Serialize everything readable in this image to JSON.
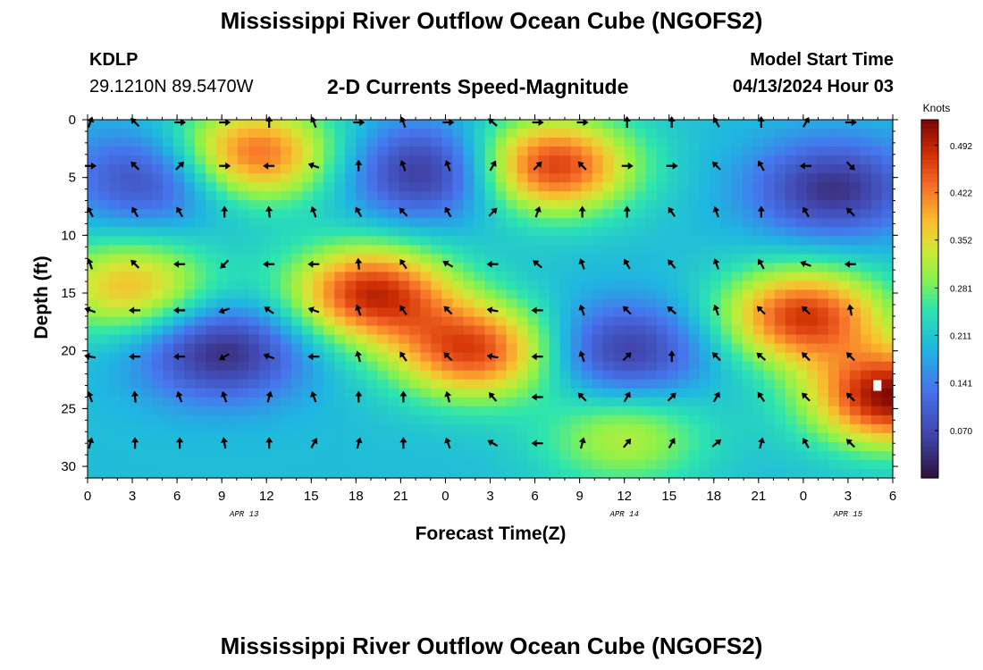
{
  "header": {
    "title": "Mississippi River Outflow Ocean Cube (NGOFS2)",
    "station": "KDLP",
    "coords": "29.1210N  89.5470W",
    "plot_title": "2-D Currents Speed-Magnitude",
    "start_label": "Model Start Time",
    "start_value": "04/13/2024 Hour 03"
  },
  "footer": {
    "title": "Mississippi River Outflow Ocean Cube (NGOFS2)"
  },
  "chart_data": {
    "type": "heatmap",
    "title": "2-D Currents Speed-Magnitude",
    "xlabel": "Forecast Time(Z)",
    "ylabel": "Depth (ft)",
    "x_hours_from_start": [
      0,
      54
    ],
    "x_tick_labels": [
      "0",
      "3",
      "6",
      "9",
      "12",
      "15",
      "18",
      "21",
      "0",
      "3",
      "6",
      "9",
      "12",
      "15",
      "18",
      "21",
      "0",
      "3",
      "6"
    ],
    "date_labels": [
      {
        "label": "APR 13",
        "at_tick": 3.5
      },
      {
        "label": "APR 14",
        "at_tick": 12
      },
      {
        "label": "APR 15",
        "at_tick": 17
      }
    ],
    "y_ticks": [
      0,
      5,
      10,
      15,
      20,
      25,
      30
    ],
    "ylim": [
      0,
      31
    ],
    "y_inverted": true,
    "colorbar": {
      "unit": "Knots",
      "ticks": [
        "0.492",
        "0.422",
        "0.352",
        "0.281",
        "0.211",
        "0.141",
        "0.070"
      ],
      "range": [
        0.0,
        0.53
      ]
    },
    "speed_extremes_knots": [
      {
        "label": "low",
        "hour": 4.5,
        "depth": 5,
        "speed": 0.06
      },
      {
        "label": "high",
        "hour": 11,
        "depth": 3,
        "speed": 0.45
      },
      {
        "label": "low",
        "hour": 23,
        "depth": 4.5,
        "speed": 0.03
      },
      {
        "label": "high",
        "hour": 31,
        "depth": 4,
        "speed": 0.48
      },
      {
        "label": "low",
        "hour": 50,
        "depth": 6,
        "speed": 0.04
      },
      {
        "label": "high",
        "hour": 3,
        "depth": 14.5,
        "speed": 0.38
      },
      {
        "label": "low",
        "hour": 9,
        "depth": 20,
        "speed": 0.03
      },
      {
        "label": "high",
        "hour": 19,
        "depth": 15,
        "speed": 0.48
      },
      {
        "label": "high",
        "hour": 26,
        "depth": 20,
        "speed": 0.46
      },
      {
        "label": "low",
        "hour": 36,
        "depth": 20,
        "speed": 0.05
      },
      {
        "label": "high",
        "hour": 48,
        "depth": 17,
        "speed": 0.47
      },
      {
        "label": "high",
        "hour": 54,
        "depth": 24,
        "speed": 0.52
      },
      {
        "label": "high",
        "hour": 36,
        "depth": 27.5,
        "speed": 0.32
      }
    ],
    "speed_background_knots": 0.2,
    "vector_hours": [
      0,
      3,
      6,
      9,
      12,
      15,
      18,
      21,
      24,
      27,
      30,
      33,
      36,
      39,
      42,
      45,
      48,
      51
    ],
    "vector_depths": [
      0,
      4,
      8,
      12.5,
      16.5,
      20.5,
      24,
      28
    ],
    "vector_directions_deg": [
      [
        290,
        225,
        0,
        0,
        270,
        250,
        0,
        250,
        0,
        220,
        0,
        0,
        270,
        270,
        240,
        270,
        300,
        0
      ],
      [
        0,
        225,
        315,
        0,
        180,
        200,
        270,
        250,
        250,
        300,
        315,
        225,
        0,
        0,
        225,
        240,
        180,
        45
      ],
      [
        240,
        240,
        240,
        270,
        265,
        250,
        240,
        225,
        240,
        315,
        290,
        270,
        270,
        235,
        250,
        270,
        240,
        225
      ],
      [
        250,
        225,
        180,
        135,
        180,
        180,
        265,
        235,
        210,
        180,
        220,
        250,
        240,
        230,
        250,
        240,
        200,
        180
      ],
      [
        200,
        180,
        180,
        160,
        215,
        200,
        250,
        235,
        225,
        190,
        180,
        250,
        225,
        220,
        250,
        225,
        225,
        260
      ],
      [
        190,
        180,
        180,
        150,
        200,
        180,
        255,
        235,
        225,
        190,
        180,
        250,
        315,
        270,
        225,
        220,
        225,
        225
      ],
      [
        250,
        265,
        250,
        250,
        285,
        250,
        270,
        270,
        255,
        230,
        180,
        225,
        300,
        315,
        300,
        235,
        225,
        225
      ],
      [
        285,
        270,
        270,
        260,
        270,
        300,
        285,
        270,
        250,
        210,
        180,
        285,
        310,
        300,
        320,
        285,
        240,
        225
      ]
    ]
  }
}
